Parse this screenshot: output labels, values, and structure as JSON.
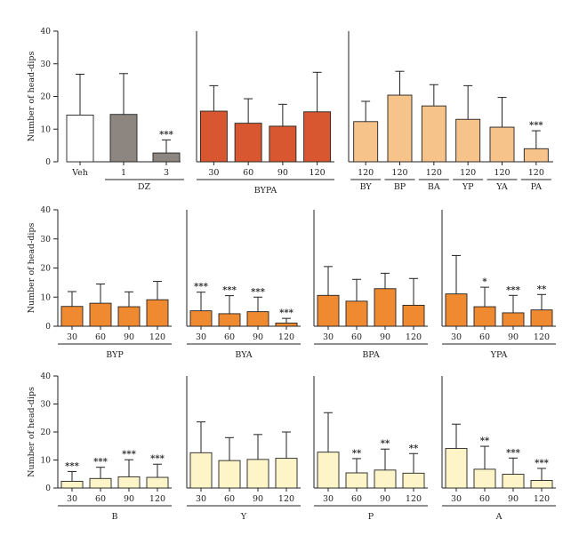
{
  "chart_data": [
    {
      "type": "bar",
      "ylabel": "Number of head-dips",
      "ylim": [
        0,
        40
      ],
      "yticks": [
        0,
        10,
        20,
        30,
        40
      ],
      "groups": [
        {
          "label": "",
          "categories": [
            "Veh"
          ],
          "values": [
            14.3
          ],
          "errors": [
            12.5
          ],
          "sig": [
            ""
          ],
          "color": "#ffffff"
        },
        {
          "label": "DZ",
          "categories": [
            "1",
            "3"
          ],
          "values": [
            14.5,
            2.7
          ],
          "errors": [
            12.5,
            4.0
          ],
          "sig": [
            "",
            "***"
          ],
          "color": "#8c8580"
        }
      ]
    },
    {
      "type": "bar",
      "ylim": [
        0,
        40
      ],
      "groups": [
        {
          "label": "BYPA",
          "categories": [
            "30",
            "60",
            "90",
            "120"
          ],
          "values": [
            15.5,
            11.8,
            10.9,
            15.3
          ],
          "errors": [
            7.8,
            7.5,
            6.7,
            12.1
          ],
          "sig": [
            "",
            "",
            "",
            ""
          ],
          "color": "#d95730"
        }
      ]
    },
    {
      "type": "bar",
      "ylim": [
        0,
        40
      ],
      "groups": [
        {
          "label": "BY",
          "categories": [
            "120"
          ],
          "values": [
            12.3
          ],
          "errors": [
            6.2
          ],
          "sig": [
            ""
          ],
          "color": "#f6c48a"
        },
        {
          "label": "BP",
          "categories": [
            "120"
          ],
          "values": [
            20.4
          ],
          "errors": [
            7.3
          ],
          "sig": [
            ""
          ],
          "color": "#f6c48a"
        },
        {
          "label": "BA",
          "categories": [
            "120"
          ],
          "values": [
            17.1
          ],
          "errors": [
            6.5
          ],
          "sig": [
            ""
          ],
          "color": "#f6c48a"
        },
        {
          "label": "YP",
          "categories": [
            "120"
          ],
          "values": [
            13.0
          ],
          "errors": [
            10.3
          ],
          "sig": [
            ""
          ],
          "color": "#f6c48a"
        },
        {
          "label": "YA",
          "categories": [
            "120"
          ],
          "values": [
            10.6
          ],
          "errors": [
            9.1
          ],
          "sig": [
            ""
          ],
          "color": "#f6c48a"
        },
        {
          "label": "PA",
          "categories": [
            "120"
          ],
          "values": [
            4.0
          ],
          "errors": [
            5.5
          ],
          "sig": [
            "***"
          ],
          "color": "#f6c48a"
        }
      ]
    },
    {
      "type": "bar",
      "ylabel": "Number of head-dips",
      "ylim": [
        0,
        40
      ],
      "yticks": [
        0,
        10,
        20,
        30,
        40
      ],
      "groups": [
        {
          "label": "BYP",
          "categories": [
            "30",
            "60",
            "90",
            "120"
          ],
          "values": [
            6.8,
            7.9,
            6.7,
            9.1
          ],
          "errors": [
            5.1,
            6.6,
            5.1,
            6.3
          ],
          "sig": [
            "",
            "",
            "",
            ""
          ],
          "color": "#f08a30"
        }
      ]
    },
    {
      "type": "bar",
      "ylim": [
        0,
        40
      ],
      "groups": [
        {
          "label": "BYA",
          "categories": [
            "30",
            "60",
            "90",
            "120"
          ],
          "values": [
            5.3,
            4.3,
            5.0,
            1.1
          ],
          "errors": [
            6.4,
            6.2,
            5.0,
            1.6
          ],
          "sig": [
            "***",
            "***",
            "***",
            "***"
          ],
          "color": "#f08a30"
        }
      ]
    },
    {
      "type": "bar",
      "ylim": [
        0,
        40
      ],
      "groups": [
        {
          "label": "BPA",
          "categories": [
            "30",
            "60",
            "90",
            "120"
          ],
          "values": [
            10.6,
            8.6,
            12.9,
            7.2
          ],
          "errors": [
            9.9,
            7.5,
            5.3,
            9.2
          ],
          "sig": [
            "",
            "",
            "",
            ""
          ],
          "color": "#f08a30"
        }
      ]
    },
    {
      "type": "bar",
      "ylim": [
        0,
        40
      ],
      "groups": [
        {
          "label": "YPA",
          "categories": [
            "30",
            "60",
            "90",
            "120"
          ],
          "values": [
            11.1,
            6.7,
            4.6,
            5.6
          ],
          "errors": [
            13.2,
            6.7,
            6.0,
            5.3
          ],
          "sig": [
            "",
            "*",
            "***",
            "**"
          ],
          "color": "#f08a30"
        }
      ]
    },
    {
      "type": "bar",
      "ylabel": "Number of head-dips",
      "ylim": [
        0,
        40
      ],
      "yticks": [
        0,
        10,
        20,
        30,
        40
      ],
      "groups": [
        {
          "label": "B",
          "categories": [
            "30",
            "60",
            "90",
            "120"
          ],
          "values": [
            2.4,
            3.4,
            4.0,
            3.8
          ],
          "errors": [
            3.5,
            4.0,
            6.1,
            4.7
          ],
          "sig": [
            "***",
            "***",
            "***",
            "***"
          ],
          "color": "#fdf5c8"
        }
      ]
    },
    {
      "type": "bar",
      "ylim": [
        0,
        40
      ],
      "groups": [
        {
          "label": "Y",
          "categories": [
            "30",
            "60",
            "90",
            "120"
          ],
          "values": [
            12.6,
            9.8,
            10.2,
            10.6
          ],
          "errors": [
            11.0,
            8.2,
            8.9,
            9.4
          ],
          "sig": [
            "",
            "",
            "",
            ""
          ],
          "color": "#fdf5c8"
        }
      ]
    },
    {
      "type": "bar",
      "ylim": [
        0,
        40
      ],
      "groups": [
        {
          "label": "P",
          "categories": [
            "30",
            "60",
            "90",
            "120"
          ],
          "values": [
            12.8,
            5.4,
            6.4,
            5.3
          ],
          "errors": [
            14.1,
            5.1,
            7.5,
            7.0
          ],
          "sig": [
            "",
            "**",
            "**",
            "**"
          ],
          "color": "#fdf5c8"
        }
      ]
    },
    {
      "type": "bar",
      "ylim": [
        0,
        40
      ],
      "groups": [
        {
          "label": "A",
          "categories": [
            "30",
            "60",
            "90",
            "120"
          ],
          "values": [
            14.1,
            6.7,
            4.9,
            2.7
          ],
          "errors": [
            8.7,
            8.2,
            5.8,
            4.3
          ],
          "sig": [
            "",
            "**",
            "***",
            "***"
          ],
          "color": "#fdf5c8"
        }
      ]
    }
  ]
}
